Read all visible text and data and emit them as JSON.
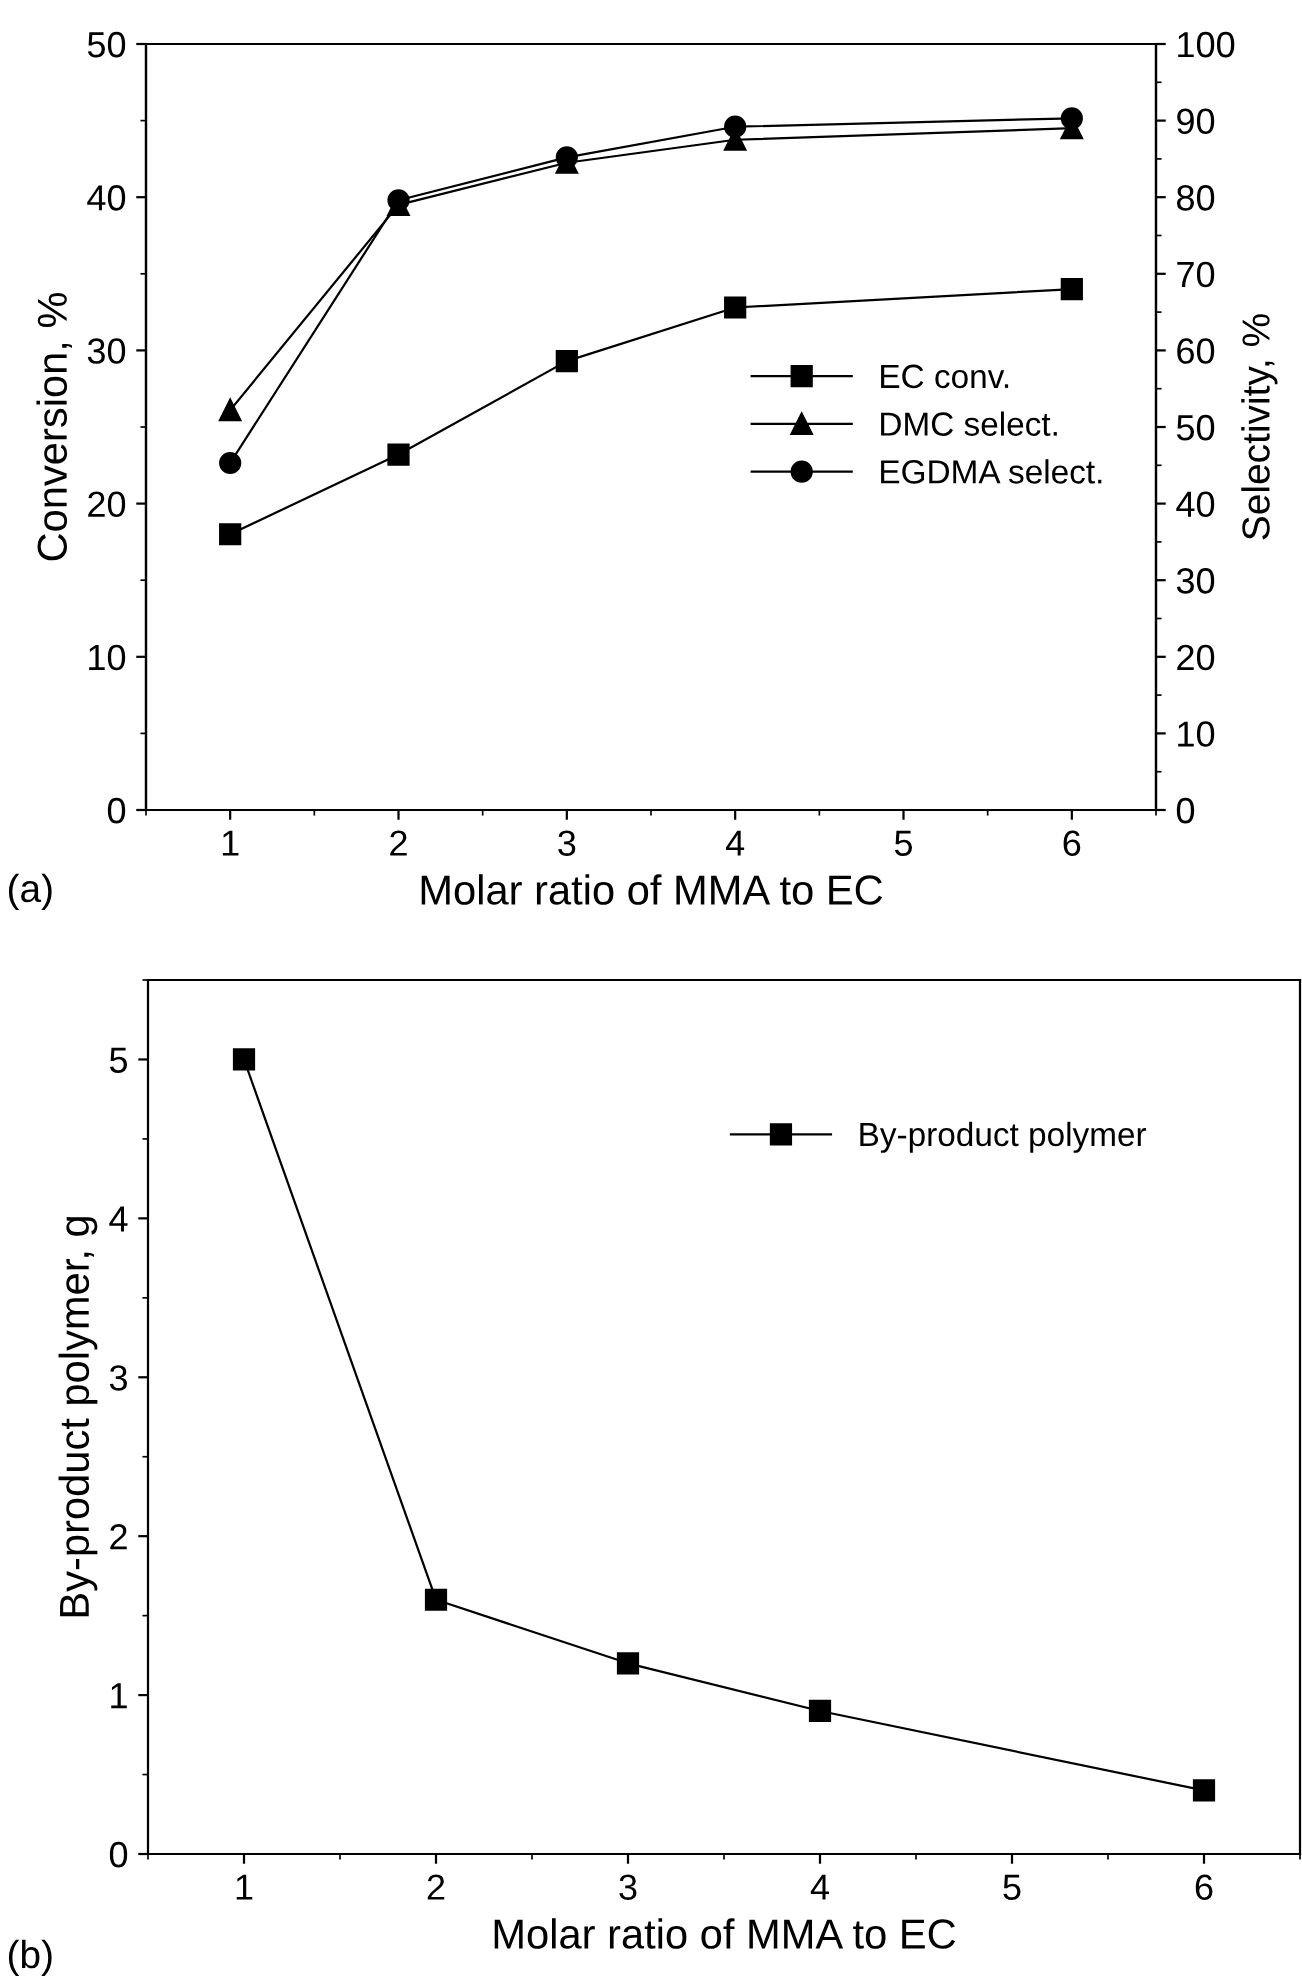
{
  "chart_data": [
    {
      "type": "line",
      "xlabel": "Molar ratio of MMA to EC",
      "ylabel": "Conversion, %",
      "y2label": "Selectivity, %",
      "annotations": [
        "(a)"
      ],
      "x": [
        1,
        2,
        3,
        4,
        6
      ],
      "series": [
        {
          "name": "EC conv.",
          "color": "#000000",
          "marker": "square",
          "values": [
            18,
            23.2,
            29.3,
            32.8,
            34
          ]
        },
        {
          "name": "DMC select.",
          "color": "#000000",
          "marker": "triangle",
          "axis": "y2",
          "values": [
            52.2,
            79,
            84.5,
            87.5,
            89
          ]
        },
        {
          "name": "EGDMA select.",
          "color": "#000000",
          "marker": "circle",
          "axis": "y2",
          "values": [
            45.3,
            79.6,
            85.2,
            89.2,
            90.3
          ]
        }
      ],
      "xlim": [
        0.5,
        6.5
      ],
      "xticks": [
        1,
        2,
        3,
        4,
        5,
        6
      ],
      "ylim": [
        0,
        50
      ],
      "yticks": [
        0,
        10,
        20,
        30,
        40,
        50
      ],
      "y2lim": [
        0,
        100
      ],
      "y2ticks": [
        0,
        10,
        20,
        30,
        40,
        50,
        60,
        70,
        80,
        90,
        100
      ],
      "legend": "right",
      "grid": false,
      "line_style": "solid"
    },
    {
      "type": "line",
      "xlabel": "Molar ratio of MMA to EC",
      "ylabel": "By-product polymer, g",
      "annotations": [
        "(b)"
      ],
      "x": [
        1,
        2,
        3,
        4,
        6
      ],
      "series": [
        {
          "name": "By-product polymer",
          "color": "#000000",
          "marker": "square",
          "values": [
            5,
            1.6,
            1.2,
            0.9,
            0.4
          ]
        }
      ],
      "xlim": [
        0.5,
        6.5
      ],
      "xticks": [
        1,
        2,
        3,
        4,
        5,
        6
      ],
      "ylim": [
        0,
        5.5
      ],
      "yticks": [
        0,
        1,
        2,
        3,
        4,
        5
      ],
      "legend": "top",
      "grid": false,
      "line_style": "solid"
    }
  ]
}
